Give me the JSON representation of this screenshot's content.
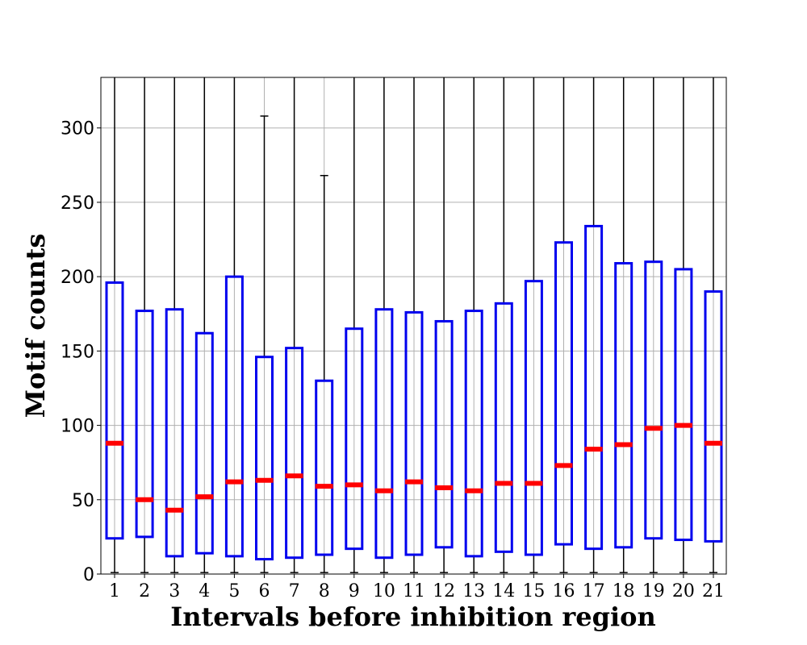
{
  "chart_data": {
    "type": "boxplot",
    "title": "",
    "xlabel": "Intervals before inhibition region",
    "ylabel": "Motif counts",
    "ylim": [
      0,
      334
    ],
    "grid": true,
    "yticks": [
      0,
      50,
      100,
      150,
      200,
      250,
      300
    ],
    "categories": [
      "1",
      "2",
      "3",
      "4",
      "5",
      "6",
      "7",
      "8",
      "9",
      "10",
      "11",
      "12",
      "13",
      "14",
      "15",
      "16",
      "17",
      "18",
      "19",
      "20",
      "21"
    ],
    "q1": [
      24,
      25,
      12,
      14,
      12,
      10,
      11,
      13,
      17,
      11,
      13,
      18,
      12,
      15,
      13,
      20,
      17,
      18,
      24,
      23,
      22
    ],
    "median": [
      88,
      50,
      43,
      52,
      62,
      63,
      66,
      59,
      60,
      56,
      62,
      58,
      56,
      61,
      61,
      73,
      84,
      87,
      98,
      100,
      88
    ],
    "q3": [
      196,
      177,
      178,
      162,
      200,
      146,
      152,
      130,
      165,
      178,
      176,
      170,
      177,
      182,
      197,
      223,
      234,
      209,
      210,
      205,
      190
    ],
    "whisker_low": [
      1,
      1,
      1,
      1,
      1,
      1,
      1,
      1,
      1,
      1,
      1,
      1,
      1,
      1,
      1,
      1,
      1,
      1,
      1,
      1,
      1
    ],
    "whisker_high": [
      340,
      340,
      340,
      340,
      340,
      308,
      340,
      268,
      340,
      340,
      340,
      340,
      340,
      340,
      340,
      340,
      340,
      340,
      340,
      340,
      340
    ],
    "colors": {
      "box": "#0000ee",
      "median": "#ff0000",
      "whisker": "#000000",
      "grid": "#b0b0b0"
    }
  }
}
